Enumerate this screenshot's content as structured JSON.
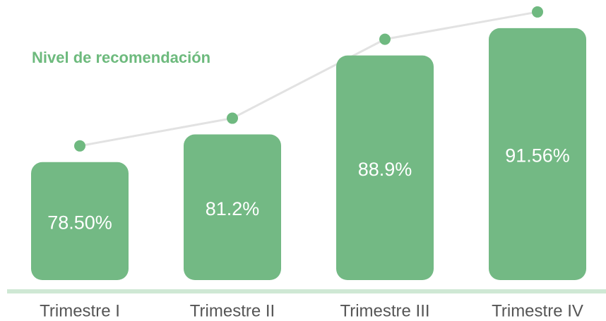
{
  "chart_data": {
    "type": "bar",
    "title": "Nivel de recomendación",
    "categories": [
      "Trimestre I",
      "Trimestre II",
      "Trimestre III",
      "Trimestre IV"
    ],
    "values": [
      78.5,
      81.2,
      88.9,
      91.56
    ],
    "value_labels": [
      "78.50%",
      "81.2%",
      "88.9%",
      "91.56%"
    ],
    "color": "#73b984",
    "line_color": "#e2e2e2",
    "marker_color": "#6fb980",
    "ylim": [
      67,
      93
    ]
  }
}
